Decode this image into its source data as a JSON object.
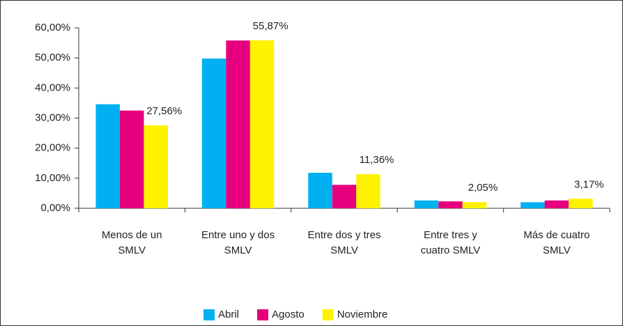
{
  "chart_data": {
    "type": "bar",
    "categories": [
      "Menos de un SMLV",
      "Entre uno y dos SMLV",
      "Entre dos y tres SMLV",
      "Entre tres y cuatro SMLV",
      "Más de cuatro SMLV"
    ],
    "series": [
      {
        "name": "Abril",
        "color": "#00b0f0",
        "values": [
          34.6,
          49.8,
          11.8,
          2.6,
          2.0
        ]
      },
      {
        "name": "Agosto",
        "color": "#e6007e",
        "values": [
          32.5,
          55.8,
          7.8,
          2.3,
          2.6
        ]
      },
      {
        "name": "Noviembre",
        "color": "#fff200",
        "values": [
          27.56,
          55.87,
          11.36,
          2.05,
          3.17
        ],
        "value_labels": [
          "27,56%",
          "55,87%",
          "11,36%",
          "2,05%",
          "3,17%"
        ]
      }
    ],
    "ylim": [
      0,
      60
    ],
    "yticks": [
      {
        "value": 0,
        "label": "0,00%"
      },
      {
        "value": 10,
        "label": "10,00%"
      },
      {
        "value": 20,
        "label": "20,00%"
      },
      {
        "value": 30,
        "label": "30,00%"
      },
      {
        "value": 40,
        "label": "40,00%"
      },
      {
        "value": 50,
        "label": "50,00%"
      },
      {
        "value": 60,
        "label": "60,00%"
      }
    ],
    "legend": "bottom"
  }
}
